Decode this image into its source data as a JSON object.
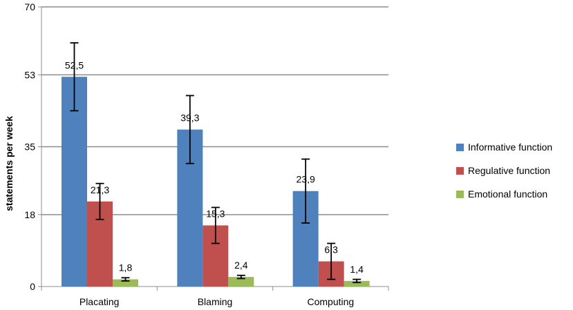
{
  "chart_data": {
    "type": "bar",
    "categories": [
      "Placating",
      "Blaming",
      "Computing"
    ],
    "series": [
      {
        "name": "Informative function",
        "values": [
          52.5,
          39.3,
          23.9
        ],
        "labels": [
          "52,5",
          "39,3",
          "23,9"
        ],
        "error": [
          8.5,
          8.5,
          8.0
        ],
        "color": "#4F81BD"
      },
      {
        "name": "Regulative function",
        "values": [
          21.3,
          15.3,
          6.3
        ],
        "labels": [
          "21,3",
          "15,3",
          "6,3"
        ],
        "error": [
          4.5,
          4.5,
          4.5
        ],
        "color": "#C0504D"
      },
      {
        "name": "Emotional function",
        "values": [
          1.8,
          2.4,
          1.4
        ],
        "labels": [
          "1,8",
          "2,4",
          "1,4"
        ],
        "error": [
          0.4,
          0.4,
          0.4
        ],
        "color": "#9BBB59"
      }
    ],
    "ylabel": "statements per week",
    "xlabel": "",
    "yticks": [
      0,
      18,
      35,
      53,
      70
    ],
    "ytick_labels": [
      "0",
      "18",
      "35",
      "53",
      "70"
    ],
    "ylim": [
      0,
      70
    ],
    "grid": true,
    "legend_position": "right"
  }
}
